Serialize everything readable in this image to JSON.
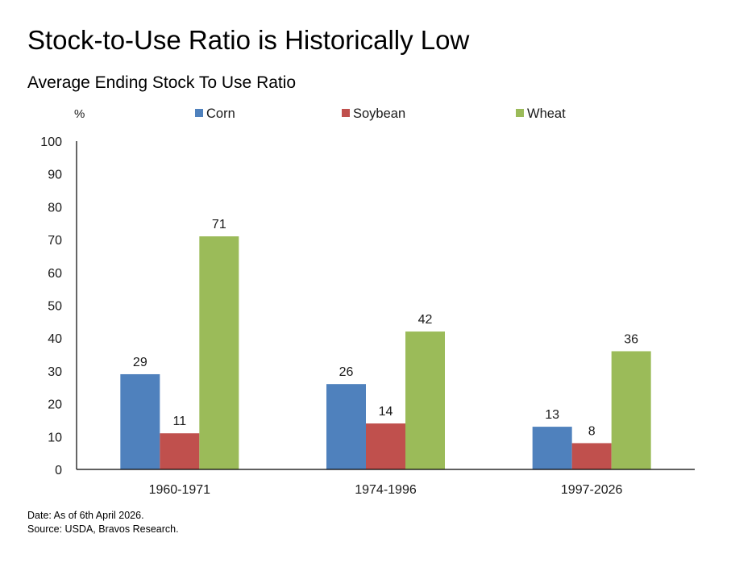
{
  "title": "Stock-to-Use Ratio is Historically Low",
  "subtitle": "Average Ending Stock To Use Ratio",
  "footer": {
    "date": "Date: As of 6th April 2026.",
    "source": "Source: USDA, Bravos Research."
  },
  "chart_data": {
    "type": "bar",
    "ylabel": "%",
    "ylim": [
      0,
      100
    ],
    "yticks": [
      0,
      10,
      20,
      30,
      40,
      50,
      60,
      70,
      80,
      90,
      100
    ],
    "categories": [
      "1960-1971",
      "1974-1996",
      "1997-2026"
    ],
    "series": [
      {
        "name": "Corn",
        "color": "#4f81bd",
        "values": [
          29,
          26,
          13
        ]
      },
      {
        "name": "Soybean",
        "color": "#c0504d",
        "values": [
          11,
          14,
          8
        ]
      },
      {
        "name": "Wheat",
        "color": "#9bbb59",
        "values": [
          71,
          42,
          36
        ]
      }
    ],
    "grid": false,
    "legend": "top",
    "data_labels": true
  }
}
